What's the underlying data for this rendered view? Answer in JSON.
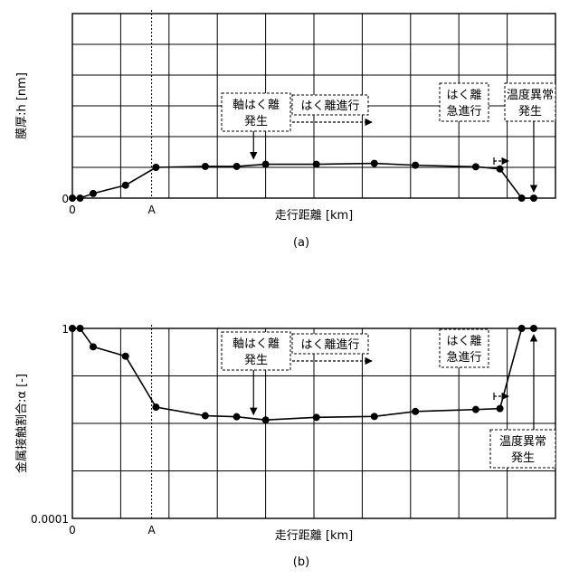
{
  "chart_data": [
    {
      "type": "line",
      "panel_label": "(a)",
      "xlabel": "走行距離 [km]",
      "ylabel": "膜厚:h [nm]",
      "x_ticks": [
        {
          "label": "0",
          "value": 0
        },
        {
          "label": "A",
          "value": 1.64
        }
      ],
      "y_ticks": [
        {
          "label": "0",
          "value": 0
        }
      ],
      "xlim": [
        0,
        10
      ],
      "ylim": [
        0,
        6
      ],
      "grid": true,
      "x": [
        0,
        0.16,
        0.43,
        1.1,
        1.73,
        2.75,
        3.4,
        4.0,
        5.05,
        6.25,
        7.1,
        8.35,
        8.85,
        9.3,
        9.55
      ],
      "y": [
        0,
        0,
        0.15,
        0.42,
        1.0,
        1.03,
        1.03,
        1.1,
        1.1,
        1.13,
        1.07,
        1.02,
        0.95,
        0,
        0
      ],
      "marker_line_x": 1.64,
      "annotations": [
        {
          "key": "axis_hakuri",
          "lines": [
            "軸はく離",
            "発生"
          ],
          "arrow_to_x": 3.75
        },
        {
          "key": "hakuri_shinko",
          "text": "はく離進行"
        },
        {
          "key": "kyushinko",
          "lines": [
            "はく離",
            "急進行"
          ]
        },
        {
          "key": "ondo",
          "lines": [
            "温度異常",
            "発生"
          ],
          "arrow_to_x": 9.55
        }
      ]
    },
    {
      "type": "line",
      "panel_label": "(b)",
      "xlabel": "走行距離 [km]",
      "ylabel": "金属接触割合:α [-]",
      "yscale": "log",
      "x_ticks": [
        {
          "label": "0",
          "value": 0
        },
        {
          "label": "A",
          "value": 1.64
        }
      ],
      "y_ticks": [
        {
          "label": "1",
          "value": 1
        },
        {
          "label": "0.0001",
          "value": 0.0001
        }
      ],
      "xlim": [
        0,
        10
      ],
      "ylim": [
        0.0001,
        1
      ],
      "grid": true,
      "x": [
        0,
        0.16,
        0.43,
        1.1,
        1.73,
        2.75,
        3.4,
        4.0,
        5.05,
        6.25,
        7.1,
        8.35,
        8.85,
        9.3,
        9.55
      ],
      "y": [
        1,
        1,
        0.41,
        0.26,
        0.022,
        0.0145,
        0.0138,
        0.0118,
        0.0134,
        0.014,
        0.0178,
        0.0196,
        0.0205,
        1,
        1
      ],
      "marker_line_x": 1.64,
      "annotations": [
        {
          "key": "axis_hakuri",
          "lines": [
            "軸はく離",
            "発生"
          ],
          "arrow_to_x": 3.75
        },
        {
          "key": "hakuri_shinko",
          "text": "はく離進行"
        },
        {
          "key": "kyushinko",
          "lines": [
            "はく離",
            "急進行"
          ]
        },
        {
          "key": "ondo",
          "lines": [
            "温度異常",
            "発生"
          ],
          "arrow_to_x": 9.55
        }
      ]
    }
  ]
}
